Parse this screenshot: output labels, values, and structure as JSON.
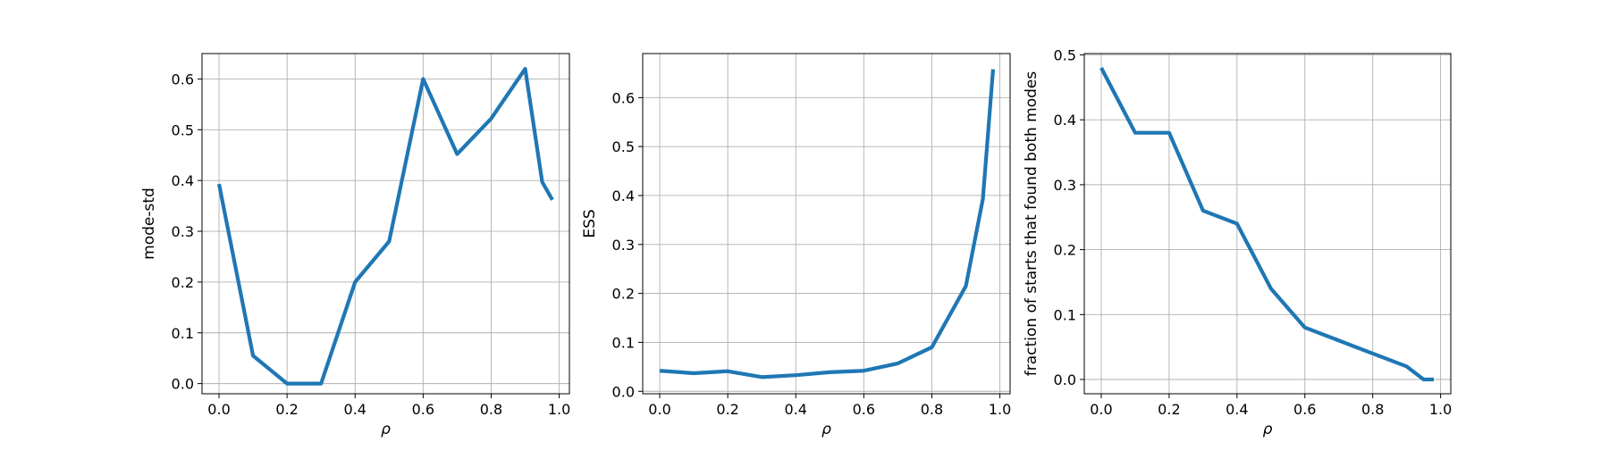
{
  "chart_data": [
    {
      "type": "line",
      "xlabel": "ρ",
      "ylabel": "mode-std",
      "xlim": [
        -0.05,
        1.03
      ],
      "ylim": [
        -0.02,
        0.65
      ],
      "xticks": [
        0.0,
        0.2,
        0.4,
        0.6,
        0.8,
        1.0
      ],
      "xtick_labels": [
        "0.0",
        "0.2",
        "0.4",
        "0.6",
        "0.8",
        "1.0"
      ],
      "yticks": [
        0.0,
        0.1,
        0.2,
        0.3,
        0.4,
        0.5,
        0.6
      ],
      "ytick_labels": [
        "0.0",
        "0.1",
        "0.2",
        "0.3",
        "0.4",
        "0.5",
        "0.6"
      ],
      "grid": true,
      "series": [
        {
          "color": "#1f77b4",
          "x": [
            0.0,
            0.1,
            0.2,
            0.3,
            0.4,
            0.5,
            0.6,
            0.7,
            0.8,
            0.9,
            0.95,
            0.98
          ],
          "y": [
            0.393,
            0.055,
            0.0,
            0.0,
            0.2,
            0.28,
            0.6,
            0.452,
            0.522,
            0.62,
            0.397,
            0.362
          ]
        }
      ]
    },
    {
      "type": "line",
      "xlabel": "ρ",
      "ylabel": "ESS",
      "xlim": [
        -0.05,
        1.03
      ],
      "ylim": [
        -0.005,
        0.69
      ],
      "xticks": [
        0.0,
        0.2,
        0.4,
        0.6,
        0.8,
        1.0
      ],
      "xtick_labels": [
        "0.0",
        "0.2",
        "0.4",
        "0.6",
        "0.8",
        "1.0"
      ],
      "yticks": [
        0.0,
        0.1,
        0.2,
        0.3,
        0.4,
        0.5,
        0.6
      ],
      "ytick_labels": [
        "0.0",
        "0.1",
        "0.2",
        "0.3",
        "0.4",
        "0.5",
        "0.6"
      ],
      "grid": true,
      "series": [
        {
          "color": "#1f77b4",
          "x": [
            0.0,
            0.1,
            0.2,
            0.3,
            0.4,
            0.5,
            0.6,
            0.7,
            0.8,
            0.9,
            0.95,
            0.98
          ],
          "y": [
            0.042,
            0.037,
            0.041,
            0.029,
            0.033,
            0.039,
            0.042,
            0.057,
            0.09,
            0.215,
            0.393,
            0.658
          ]
        }
      ]
    },
    {
      "type": "line",
      "xlabel": "ρ",
      "ylabel": "fraction of starts that found both modes",
      "xlim": [
        -0.05,
        1.03
      ],
      "ylim": [
        -0.022,
        0.502
      ],
      "xticks": [
        0.0,
        0.2,
        0.4,
        0.6,
        0.8,
        1.0
      ],
      "xtick_labels": [
        "0.0",
        "0.2",
        "0.4",
        "0.6",
        "0.8",
        "1.0"
      ],
      "yticks": [
        0.0,
        0.1,
        0.2,
        0.3,
        0.4,
        0.5
      ],
      "ytick_labels": [
        "0.0",
        "0.1",
        "0.2",
        "0.3",
        "0.4",
        "0.5"
      ],
      "grid": true,
      "series": [
        {
          "color": "#1f77b4",
          "x": [
            0.0,
            0.1,
            0.2,
            0.3,
            0.4,
            0.5,
            0.6,
            0.7,
            0.8,
            0.9,
            0.95,
            0.98
          ],
          "y": [
            0.48,
            0.38,
            0.38,
            0.26,
            0.24,
            0.14,
            0.08,
            0.06,
            0.04,
            0.02,
            0.0,
            0.0
          ]
        }
      ]
    }
  ]
}
